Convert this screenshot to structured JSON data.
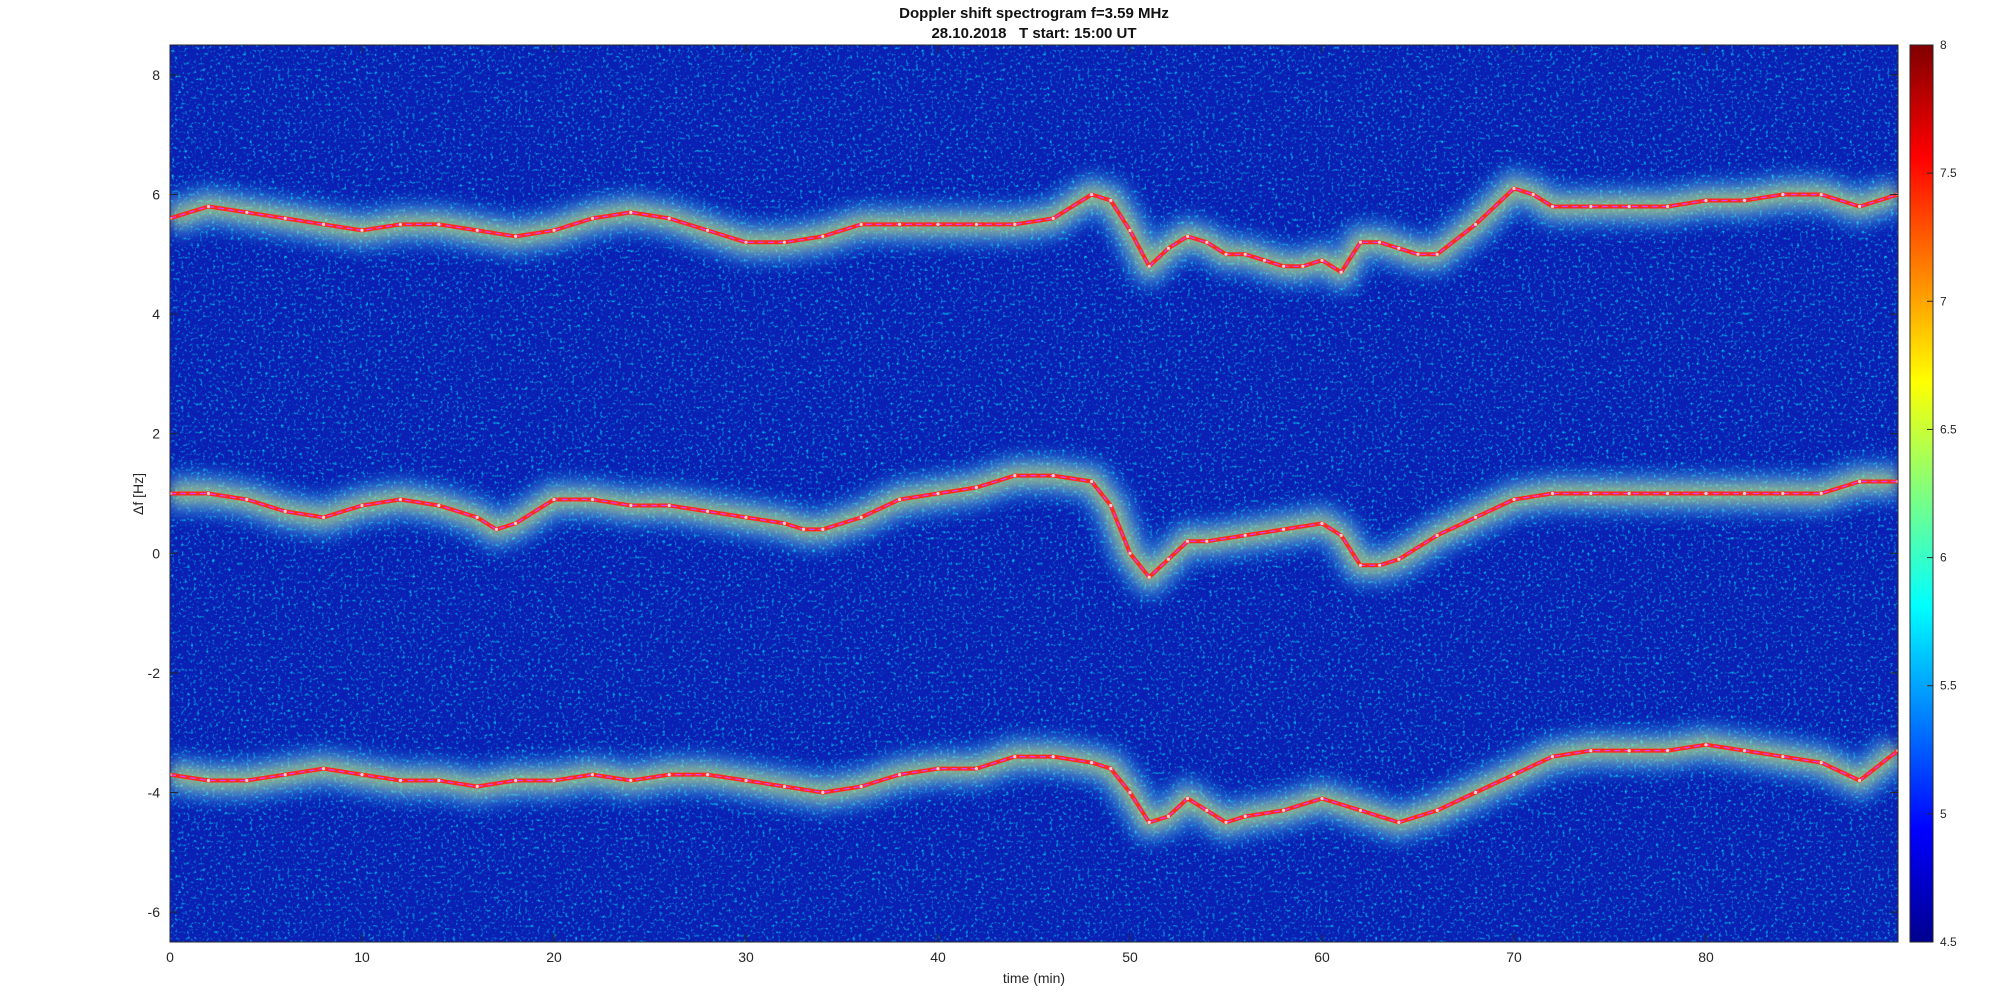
{
  "chart_data": {
    "type": "heatmap",
    "title": "Doppler shift spectrogram f=3.59 MHz",
    "subtitle": "28.10.2018   T start: 15:00 UT",
    "xlabel": "time (min)",
    "ylabel": "Δf [Hz]",
    "xlim": [
      0,
      90
    ],
    "ylim": [
      -6.5,
      8.5
    ],
    "xticks": [
      "0",
      "10",
      "20",
      "30",
      "40",
      "50",
      "60",
      "70",
      "80"
    ],
    "yticks": [
      "8",
      "6",
      "4",
      "2",
      "0",
      "-2",
      "-4",
      "-6"
    ],
    "colorbar": {
      "colormap": "jet",
      "range": [
        4.5,
        8
      ],
      "ticks": [
        "8",
        "7.5",
        "7",
        "6.5",
        "6",
        "5.5",
        "5",
        "4.5"
      ]
    },
    "series": [
      {
        "x": [
          0,
          2,
          4,
          6,
          8,
          10,
          12,
          14,
          16,
          18,
          20,
          22,
          24,
          26,
          28,
          30,
          32,
          34,
          36,
          38,
          40,
          42,
          44,
          46,
          48,
          49,
          50,
          51,
          52,
          53,
          54,
          55,
          56,
          57,
          58,
          59,
          60,
          61,
          62,
          63,
          64,
          65,
          66,
          68,
          70,
          71,
          72,
          74,
          76,
          78,
          80,
          82,
          84,
          86,
          88,
          90
        ],
        "y": [
          5.6,
          5.8,
          5.7,
          5.6,
          5.5,
          5.4,
          5.5,
          5.5,
          5.4,
          5.3,
          5.4,
          5.6,
          5.7,
          5.6,
          5.4,
          5.2,
          5.2,
          5.3,
          5.5,
          5.5,
          5.5,
          5.5,
          5.5,
          5.6,
          6.0,
          5.9,
          5.4,
          4.8,
          5.1,
          5.3,
          5.2,
          5.0,
          5.0,
          4.9,
          4.8,
          4.8,
          4.9,
          4.7,
          5.2,
          5.2,
          5.1,
          5.0,
          5.0,
          5.5,
          6.1,
          6.0,
          5.8,
          5.8,
          5.8,
          5.8,
          5.9,
          5.9,
          6.0,
          6.0,
          5.8,
          6.0
        ]
      },
      {
        "x": [
          0,
          2,
          4,
          6,
          8,
          10,
          12,
          14,
          16,
          17,
          18,
          20,
          22,
          24,
          26,
          28,
          30,
          32,
          33,
          34,
          36,
          38,
          40,
          42,
          44,
          46,
          48,
          49,
          50,
          51,
          52,
          53,
          54,
          56,
          58,
          60,
          61,
          62,
          63,
          64,
          66,
          68,
          70,
          72,
          74,
          76,
          78,
          80,
          82,
          84,
          86,
          88,
          90
        ],
        "y": [
          1.0,
          1.0,
          0.9,
          0.7,
          0.6,
          0.8,
          0.9,
          0.8,
          0.6,
          0.4,
          0.5,
          0.9,
          0.9,
          0.8,
          0.8,
          0.7,
          0.6,
          0.5,
          0.4,
          0.4,
          0.6,
          0.9,
          1.0,
          1.1,
          1.3,
          1.3,
          1.2,
          0.8,
          0.0,
          -0.4,
          -0.1,
          0.2,
          0.2,
          0.3,
          0.4,
          0.5,
          0.3,
          -0.2,
          -0.2,
          -0.1,
          0.3,
          0.6,
          0.9,
          1.0,
          1.0,
          1.0,
          1.0,
          1.0,
          1.0,
          1.0,
          1.0,
          1.2,
          1.2
        ]
      },
      {
        "x": [
          0,
          2,
          4,
          6,
          8,
          10,
          12,
          14,
          16,
          18,
          20,
          22,
          24,
          26,
          28,
          30,
          32,
          34,
          36,
          38,
          40,
          42,
          44,
          46,
          48,
          49,
          50,
          51,
          52,
          53,
          54,
          55,
          56,
          58,
          60,
          62,
          64,
          66,
          68,
          70,
          72,
          74,
          76,
          78,
          80,
          82,
          84,
          86,
          88,
          90
        ],
        "y": [
          -3.7,
          -3.8,
          -3.8,
          -3.7,
          -3.6,
          -3.7,
          -3.8,
          -3.8,
          -3.9,
          -3.8,
          -3.8,
          -3.7,
          -3.8,
          -3.7,
          -3.7,
          -3.8,
          -3.9,
          -4.0,
          -3.9,
          -3.7,
          -3.6,
          -3.6,
          -3.4,
          -3.4,
          -3.5,
          -3.6,
          -4.0,
          -4.5,
          -4.4,
          -4.1,
          -4.3,
          -4.5,
          -4.4,
          -4.3,
          -4.1,
          -4.3,
          -4.5,
          -4.3,
          -4.0,
          -3.7,
          -3.4,
          -3.3,
          -3.3,
          -3.3,
          -3.2,
          -3.3,
          -3.4,
          -3.5,
          -3.8,
          -3.3
        ]
      }
    ]
  }
}
